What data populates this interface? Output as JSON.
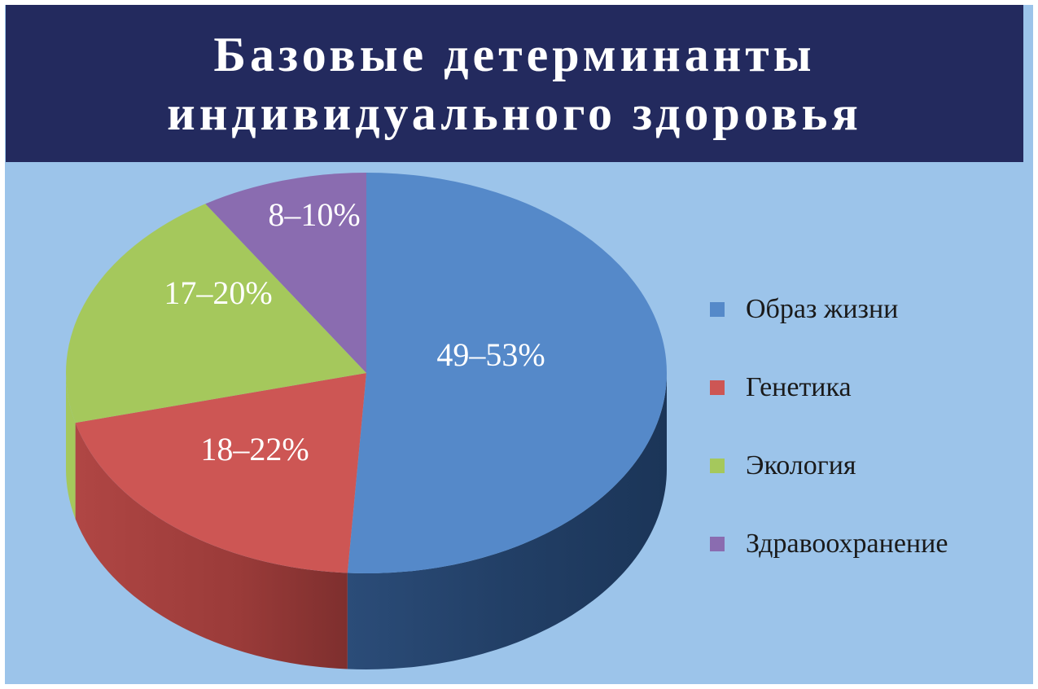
{
  "chart_data": {
    "type": "pie",
    "title_lines": [
      "Базовые детерминанты",
      "индивидуального здоровья"
    ],
    "slices": [
      {
        "name": "Образ жизни",
        "value": 51,
        "label": "49–53%",
        "color": "#5589c9"
      },
      {
        "name": "Генетика",
        "value": 20,
        "label": "18–22%",
        "color": "#cd5654"
      },
      {
        "name": "Экология",
        "value": 20,
        "label": "17–20%",
        "color": "#a5c85c"
      },
      {
        "name": "Здравоохранение",
        "value": 9,
        "label": "8–10%",
        "color": "#8a6cb0"
      }
    ],
    "legend": "right",
    "style": "3d"
  }
}
